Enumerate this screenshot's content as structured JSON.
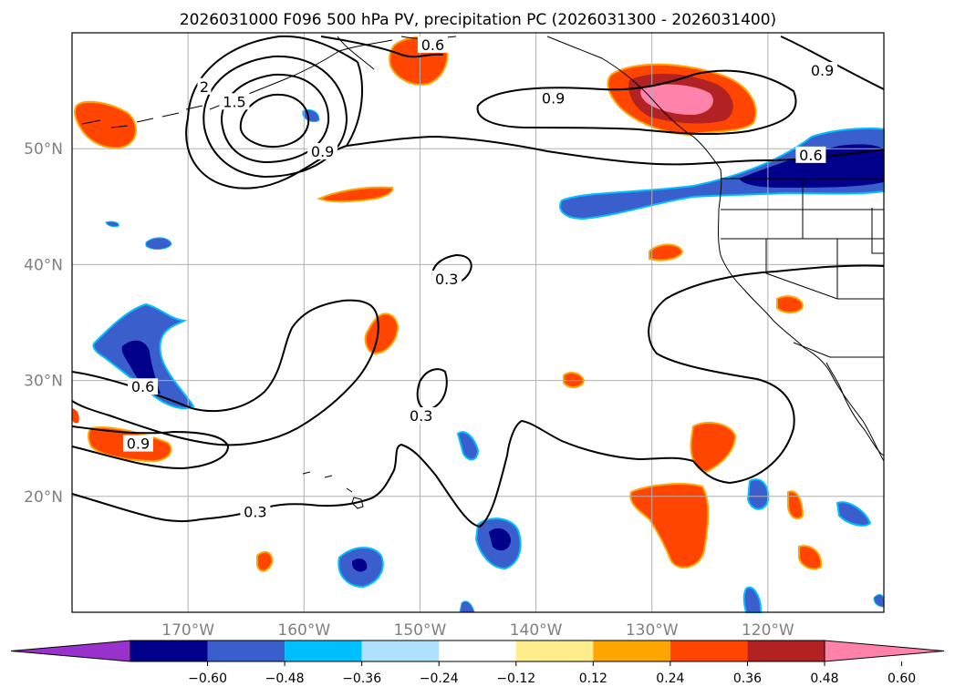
{
  "chart_data": {
    "type": "contour-map",
    "title": "2026031000 F096 500 hPa PV, precipitation PC (2026031300 - 2026031400)",
    "lon_range": [
      -180,
      -110
    ],
    "lat_range": [
      10,
      60
    ],
    "x_ticks": [
      {
        "value": -170,
        "label": "170°W"
      },
      {
        "value": -160,
        "label": "160°W"
      },
      {
        "value": -150,
        "label": "150°W"
      },
      {
        "value": -140,
        "label": "140°W"
      },
      {
        "value": -130,
        "label": "130°W"
      },
      {
        "value": -120,
        "label": "120°W"
      }
    ],
    "y_ticks": [
      {
        "value": 20,
        "label": "20°N"
      },
      {
        "value": 30,
        "label": "30°N"
      },
      {
        "value": 40,
        "label": "40°N"
      },
      {
        "value": 50,
        "label": "50°N"
      }
    ],
    "pv_contour_labels": [
      {
        "text": "0.6",
        "lon": -148.9,
        "lat": 58.9
      },
      {
        "text": "0.9",
        "lon": -138.5,
        "lat": 54.3
      },
      {
        "text": "0.9",
        "lon": -115.3,
        "lat": 56.7
      },
      {
        "text": "0.6",
        "lon": -116.3,
        "lat": 49.4
      },
      {
        "text": "0.9",
        "lon": -158.4,
        "lat": 49.7
      },
      {
        "text": "1.5",
        "lon": -166.0,
        "lat": 54.0
      },
      {
        "text": "2",
        "lon": -168.6,
        "lat": 55.3
      },
      {
        "text": "0.3",
        "lon": -147.7,
        "lat": 38.7
      },
      {
        "text": "0.6",
        "lon": -173.9,
        "lat": 29.4
      },
      {
        "text": "0.3",
        "lon": -149.9,
        "lat": 26.9
      },
      {
        "text": "0.9",
        "lon": -174.3,
        "lat": 24.5
      },
      {
        "text": "0.3",
        "lon": -164.2,
        "lat": 18.6
      }
    ],
    "colorbar": {
      "ticks": [
        "−0.60",
        "−0.48",
        "−0.36",
        "−0.24",
        "−0.12",
        "0.12",
        "0.24",
        "0.36",
        "0.48",
        "0.60"
      ],
      "colors": [
        "#9932cc",
        "#00008b",
        "#3a5fcd",
        "#00bfff",
        "#b0e2ff",
        "#ffffff",
        "#ffec8b",
        "#ffa500",
        "#ff4500",
        "#b22222",
        "#ff82ab"
      ],
      "extend": "both"
    }
  }
}
